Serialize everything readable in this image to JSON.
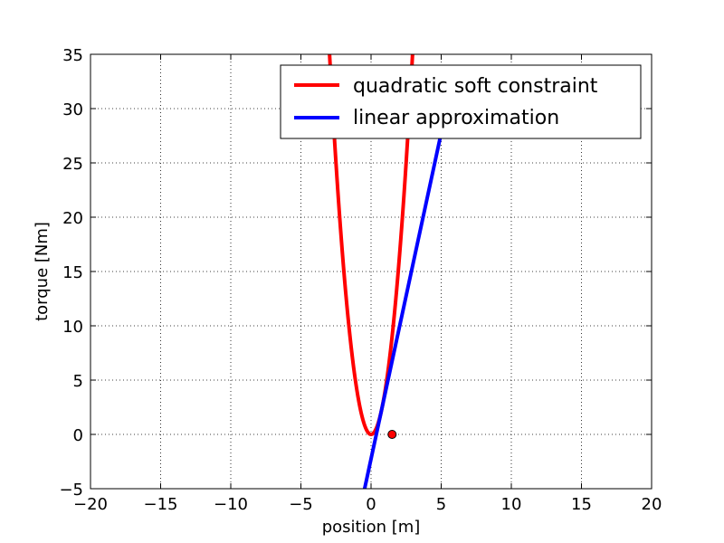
{
  "chart_data": {
    "type": "line",
    "title": "",
    "xlabel": "position [m]",
    "ylabel": "torque [Nm]",
    "xlim": [
      -20,
      20
    ],
    "ylim": [
      -5,
      35
    ],
    "xticks": [
      -20,
      -15,
      -10,
      -5,
      0,
      5,
      10,
      15,
      20
    ],
    "yticks": [
      -5,
      0,
      5,
      10,
      15,
      20,
      25,
      30,
      35
    ],
    "grid": true,
    "legend_position": "top-right",
    "series": [
      {
        "name": "quadratic soft constraint",
        "color": "#ff0000",
        "function": "y = 4*x^2",
        "x_range": [
          -3.1,
          3.1
        ]
      },
      {
        "name": "linear approximation",
        "color": "#0000ff",
        "function": "y = 6*x - 2.25",
        "x_range": [
          -0.6,
          5.5
        ]
      }
    ],
    "points": [
      {
        "x": 1.5,
        "y": 0,
        "color": "#ff0000"
      }
    ]
  }
}
